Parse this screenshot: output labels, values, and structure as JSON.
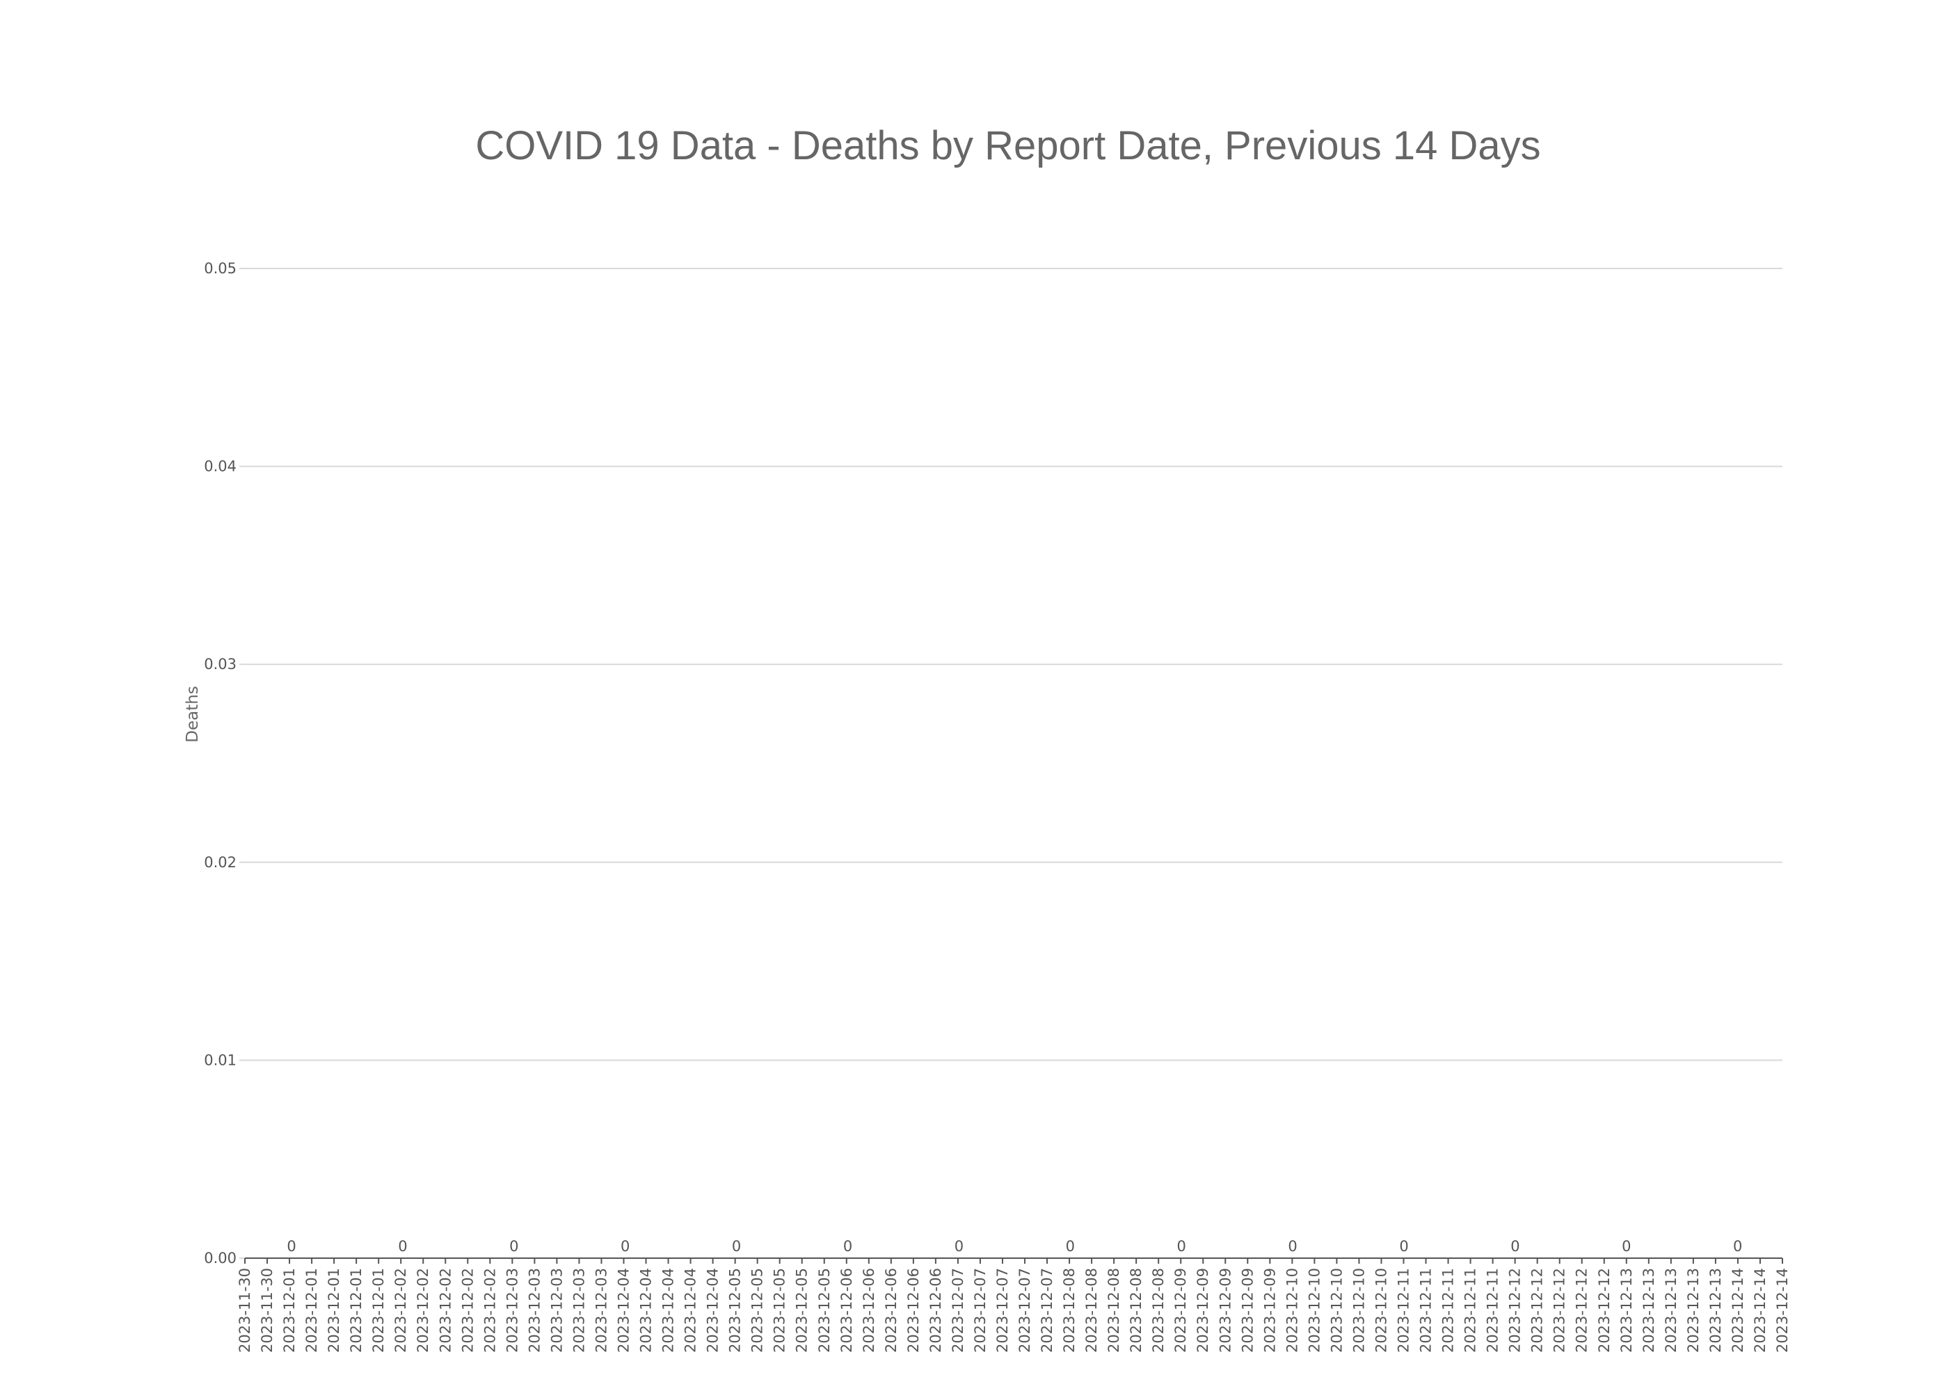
{
  "chart_data": {
    "type": "bar",
    "title": "COVID 19 Data - Deaths by Report Date, Previous 14 Days",
    "xlabel": "",
    "ylabel": "Deaths",
    "ylim": [
      0,
      0.05
    ],
    "yticks": [
      "0.00",
      "0.01",
      "0.02",
      "0.03",
      "0.04",
      "0.05"
    ],
    "grid": true,
    "legend": "none",
    "x_tick_labels": [
      "2023-11-30",
      "2023-11-30",
      "2023-12-01",
      "2023-12-01",
      "2023-12-01",
      "2023-12-01",
      "2023-12-01",
      "2023-12-02",
      "2023-12-02",
      "2023-12-02",
      "2023-12-02",
      "2023-12-02",
      "2023-12-03",
      "2023-12-03",
      "2023-12-03",
      "2023-12-03",
      "2023-12-03",
      "2023-12-04",
      "2023-12-04",
      "2023-12-04",
      "2023-12-04",
      "2023-12-04",
      "2023-12-05",
      "2023-12-05",
      "2023-12-05",
      "2023-12-05",
      "2023-12-05",
      "2023-12-06",
      "2023-12-06",
      "2023-12-06",
      "2023-12-06",
      "2023-12-06",
      "2023-12-07",
      "2023-12-07",
      "2023-12-07",
      "2023-12-07",
      "2023-12-07",
      "2023-12-08",
      "2023-12-08",
      "2023-12-08",
      "2023-12-08",
      "2023-12-08",
      "2023-12-09",
      "2023-12-09",
      "2023-12-09",
      "2023-12-09",
      "2023-12-09",
      "2023-12-10",
      "2023-12-10",
      "2023-12-10",
      "2023-12-10",
      "2023-12-10",
      "2023-12-11",
      "2023-12-11",
      "2023-12-11",
      "2023-12-11",
      "2023-12-11",
      "2023-12-12",
      "2023-12-12",
      "2023-12-12",
      "2023-12-12",
      "2023-12-12",
      "2023-12-13",
      "2023-12-13",
      "2023-12-13",
      "2023-12-13",
      "2023-12-13",
      "2023-12-14",
      "2023-12-14",
      "2023-12-14"
    ],
    "categories": [
      "2023-12-01",
      "2023-12-02",
      "2023-12-03",
      "2023-12-04",
      "2023-12-05",
      "2023-12-06",
      "2023-12-07",
      "2023-12-08",
      "2023-12-09",
      "2023-12-10",
      "2023-12-11",
      "2023-12-12",
      "2023-12-13",
      "2023-12-14"
    ],
    "values": [
      0,
      0,
      0,
      0,
      0,
      0,
      0,
      0,
      0,
      0,
      0,
      0,
      0,
      0
    ],
    "data_labels": [
      "0",
      "0",
      "0",
      "0",
      "0",
      "0",
      "0",
      "0",
      "0",
      "0",
      "0",
      "0",
      "0",
      "0"
    ],
    "colors": {
      "text": "#666666",
      "grid": "#d9d9d9",
      "axis": "#555555"
    }
  }
}
